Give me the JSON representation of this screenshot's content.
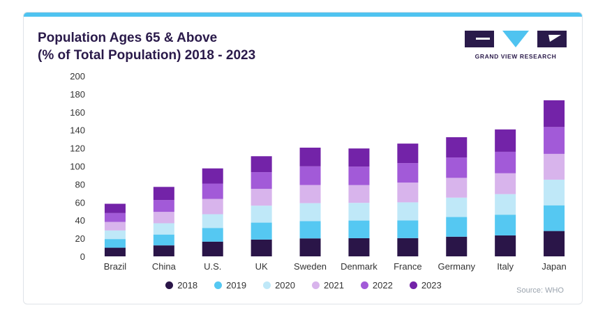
{
  "title": {
    "line1": "Population Ages 65 & Above",
    "line2": "(% of Total Population) 2018 - 2023"
  },
  "logo": {
    "text": "GRAND VIEW RESEARCH"
  },
  "source": "Source: WHO",
  "chart_data": {
    "type": "bar",
    "stacked": true,
    "title": "Population Ages 65 & Above (% of Total Population) 2018 - 2023",
    "ylim": [
      0,
      200
    ],
    "yticks": [
      0,
      20,
      40,
      60,
      80,
      100,
      120,
      140,
      160,
      180,
      200
    ],
    "grid": false,
    "legend_position": "bottom",
    "categories": [
      "Brazil",
      "China",
      "U.S.",
      "UK",
      "Sweden",
      "Denmark",
      "France",
      "Germany",
      "Italy",
      "Japan"
    ],
    "series": [
      {
        "name": "2018",
        "color": "#2a1548",
        "values": [
          9.6,
          12.2,
          16.3,
          18.6,
          19.9,
          20.1,
          20.2,
          21.8,
          23.2,
          28.1
        ]
      },
      {
        "name": "2019",
        "color": "#55c8f2",
        "values": [
          9.6,
          12.0,
          15.2,
          18.8,
          19.1,
          19.6,
          19.6,
          21.8,
          23.0,
          28.5
        ]
      },
      {
        "name": "2020",
        "color": "#bfe8f8",
        "values": [
          9.5,
          12.5,
          15.2,
          18.8,
          20.0,
          19.6,
          20.1,
          21.5,
          22.8,
          28.4
        ]
      },
      {
        "name": "2021",
        "color": "#d8b4ec",
        "values": [
          9.5,
          12.6,
          17.0,
          18.6,
          20.1,
          19.7,
          21.9,
          21.9,
          23.1,
          28.6
        ]
      },
      {
        "name": "2022",
        "color": "#a25ad8",
        "values": [
          9.8,
          13.2,
          17.0,
          18.6,
          20.7,
          20.5,
          21.6,
          22.6,
          23.8,
          29.8
        ]
      },
      {
        "name": "2023",
        "color": "#7323a8",
        "values": [
          10.3,
          14.5,
          16.8,
          17.6,
          20.7,
          20.1,
          21.6,
          22.5,
          24.8,
          29.6
        ]
      }
    ]
  }
}
